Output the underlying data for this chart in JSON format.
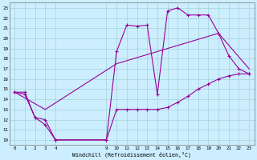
{
  "xlabel": "Windchill (Refroidissement éolien,°C)",
  "bg_color": "#cceeff",
  "line_color": "#990099",
  "xlim": [
    -0.5,
    23.5
  ],
  "ylim": [
    9.5,
    23.5
  ],
  "xticks": [
    0,
    1,
    2,
    3,
    4,
    9,
    10,
    11,
    12,
    13,
    14,
    15,
    16,
    17,
    18,
    19,
    20,
    21,
    22,
    23
  ],
  "yticks": [
    10,
    11,
    12,
    13,
    14,
    15,
    16,
    17,
    18,
    19,
    20,
    21,
    22,
    23
  ],
  "series": [
    {
      "x": [
        0,
        1,
        2,
        3,
        4,
        9,
        10,
        11,
        12,
        13,
        14,
        15,
        16,
        17,
        18,
        19,
        20,
        21,
        22,
        23
      ],
      "y": [
        14.7,
        14.7,
        12.2,
        11.5,
        10.0,
        10.0,
        18.7,
        21.3,
        21.2,
        21.3,
        14.5,
        22.7,
        23.0,
        22.3,
        22.3,
        22.3,
        20.5,
        18.3,
        17.0,
        16.5
      ],
      "markers": true
    },
    {
      "x": [
        0,
        1,
        2,
        3,
        4,
        9,
        10,
        11,
        12,
        13,
        14,
        15,
        16,
        17,
        18,
        19,
        20,
        21,
        22,
        23
      ],
      "y": [
        14.7,
        14.5,
        12.2,
        12.0,
        10.0,
        10.0,
        13.0,
        13.0,
        13.0,
        13.0,
        13.0,
        13.2,
        13.7,
        14.3,
        15.0,
        15.5,
        16.0,
        16.3,
        16.5,
        16.5
      ],
      "markers": true
    },
    {
      "x": [
        0,
        3,
        10,
        20,
        23
      ],
      "y": [
        14.7,
        13.0,
        17.5,
        20.5,
        17.0
      ],
      "markers": false
    }
  ]
}
